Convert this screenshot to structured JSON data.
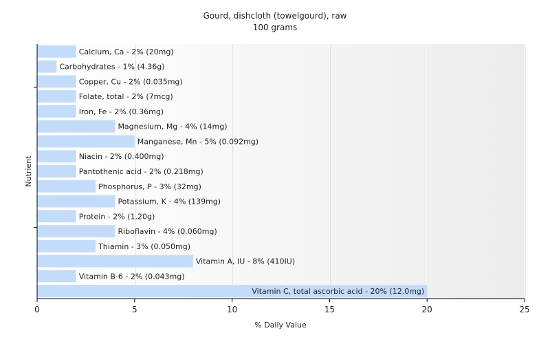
{
  "chart_data": {
    "type": "bar",
    "orientation": "horizontal",
    "title": "Gourd, dishcloth (towelgourd), raw",
    "subtitle": "100 grams",
    "xlabel": "% Daily Value",
    "ylabel": "Nutrient",
    "xlim": [
      0,
      25
    ],
    "xticks": [
      0,
      5,
      10,
      15,
      20,
      25
    ],
    "grid": true,
    "bar_color": "#c2dcfa",
    "categories": [
      "Calcium, Ca",
      "Carbohydrates",
      "Copper, Cu",
      "Folate, total",
      "Iron, Fe",
      "Magnesium, Mg",
      "Manganese, Mn",
      "Niacin",
      "Pantothenic acid",
      "Phosphorus, P",
      "Potassium, K",
      "Protein",
      "Riboflavin",
      "Thiamin",
      "Vitamin A, IU",
      "Vitamin B-6",
      "Vitamin C, total ascorbic acid"
    ],
    "values": [
      2,
      1,
      2,
      2,
      2,
      4,
      5,
      2,
      2,
      3,
      4,
      2,
      4,
      3,
      8,
      2,
      20
    ],
    "labels": [
      "Calcium, Ca - 2% (20mg)",
      "Carbohydrates - 1% (4.36g)",
      "Copper, Cu - 2% (0.035mg)",
      "Folate, total - 2% (7mcg)",
      "Iron, Fe - 2% (0.36mg)",
      "Magnesium, Mg - 4% (14mg)",
      "Manganese, Mn - 5% (0.092mg)",
      "Niacin - 2% (0.400mg)",
      "Pantothenic acid - 2% (0.218mg)",
      "Phosphorus, P - 3% (32mg)",
      "Potassium, K - 4% (139mg)",
      "Protein - 2% (1.20g)",
      "Riboflavin - 4% (0.060mg)",
      "Thiamin - 3% (0.050mg)",
      "Vitamin A, IU - 8% (410IU)",
      "Vitamin B-6 - 2% (0.043mg)",
      "Vitamin C, total ascorbic acid - 20% (12.0mg)"
    ]
  }
}
